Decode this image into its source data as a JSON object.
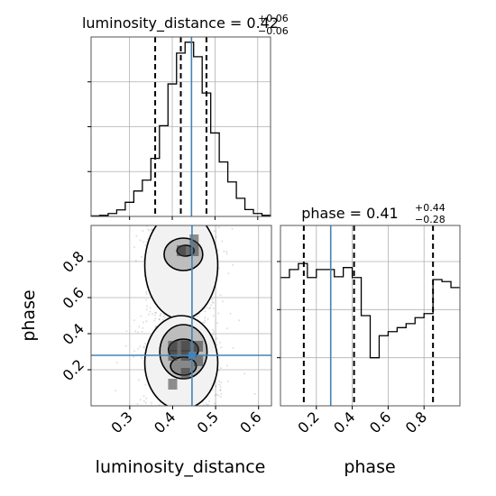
{
  "chart_data": [
    {
      "type": "histogram",
      "panel": "luminosity_distance-marginal",
      "title": {
        "main": "luminosity_distance = 0.42",
        "sup": "+0.06",
        "sub": "−0.06"
      },
      "bin_edges": [
        0.21,
        0.23,
        0.25,
        0.27,
        0.29,
        0.31,
        0.33,
        0.35,
        0.37,
        0.39,
        0.41,
        0.43,
        0.45,
        0.47,
        0.49,
        0.51,
        0.53,
        0.55,
        0.57,
        0.59,
        0.61,
        0.63
      ],
      "counts": [
        0.3,
        0.6,
        1.6,
        3.6,
        7.8,
        14,
        20,
        32,
        50,
        73,
        90,
        96,
        88,
        68,
        46,
        30,
        19,
        10,
        3.8,
        1.6,
        0.6
      ],
      "xlim": [
        0.21,
        0.63
      ],
      "quantiles": [
        0.36,
        0.42,
        0.48
      ],
      "truth": 0.445,
      "xticks": [
        0.3,
        0.4,
        0.5,
        0.6
      ]
    },
    {
      "type": "histogram",
      "panel": "phase-marginal",
      "title": {
        "main": "phase = 0.41",
        "sup": "+0.44",
        "sub": "−0.28"
      },
      "bin_edges": [
        0.0,
        0.05,
        0.1,
        0.15,
        0.2,
        0.25,
        0.3,
        0.35,
        0.4,
        0.45,
        0.5,
        0.55,
        0.6,
        0.65,
        0.7,
        0.75,
        0.8,
        0.85,
        0.9,
        0.95,
        1.0
      ],
      "counts": [
        3.2,
        3.4,
        3.55,
        3.2,
        3.4,
        3.4,
        3.22,
        3.45,
        3.2,
        2.25,
        1.2,
        1.75,
        1.85,
        1.95,
        2.05,
        2.2,
        2.3,
        3.15,
        3.1,
        2.95
      ],
      "xlim": [
        0.0,
        1.0
      ],
      "quantiles": [
        0.13,
        0.41,
        0.85
      ],
      "truth": 0.28,
      "xticks": [
        0.2,
        0.4,
        0.6,
        0.8
      ],
      "xlabel": "phase"
    },
    {
      "type": "scatter-density",
      "panel": "joint",
      "xlabel": "luminosity_distance",
      "ylabel": "phase",
      "xlim": [
        0.21,
        0.63
      ],
      "ylim": [
        0.0,
        1.0
      ],
      "xticks": [
        0.3,
        0.4,
        0.5,
        0.6
      ],
      "yticks": [
        0.2,
        0.4,
        0.6,
        0.8
      ],
      "truth": {
        "x": 0.445,
        "y": 0.28
      },
      "grid": true
    }
  ]
}
